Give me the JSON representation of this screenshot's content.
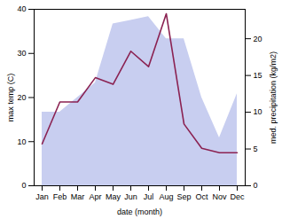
{
  "chart_data": {
    "type": "line",
    "xlabel": "date (month)",
    "ylabel": "max temp (C)",
    "y2label": "med. precipitation (kg/m2)",
    "categories": [
      "Jan",
      "Feb",
      "Mar",
      "Apr",
      "May",
      "Jun",
      "Jul",
      "Aug",
      "Sep",
      "Oct",
      "Nov",
      "Dec"
    ],
    "series": [
      {
        "type": "area",
        "color": "#c8cef0",
        "axis": "y2",
        "values": [
          10.0,
          10.0,
          12.0,
          14.0,
          22.0,
          22.5,
          23.0,
          20.0,
          20.0,
          12.0,
          6.5,
          12.5
        ]
      },
      {
        "type": "line",
        "color": "#8B2252",
        "values": [
          9.5,
          19.0,
          19.0,
          24.5,
          23.0,
          30.5,
          27.0,
          39.0,
          14.0,
          8.5,
          7.5,
          7.5
        ]
      }
    ],
    "ylim": [
      0,
      40
    ],
    "yticks": [
      0,
      10,
      20,
      30,
      40
    ],
    "y2lim": [
      0,
      24
    ],
    "y2ticks": [
      0,
      5,
      10,
      15,
      20
    ]
  }
}
